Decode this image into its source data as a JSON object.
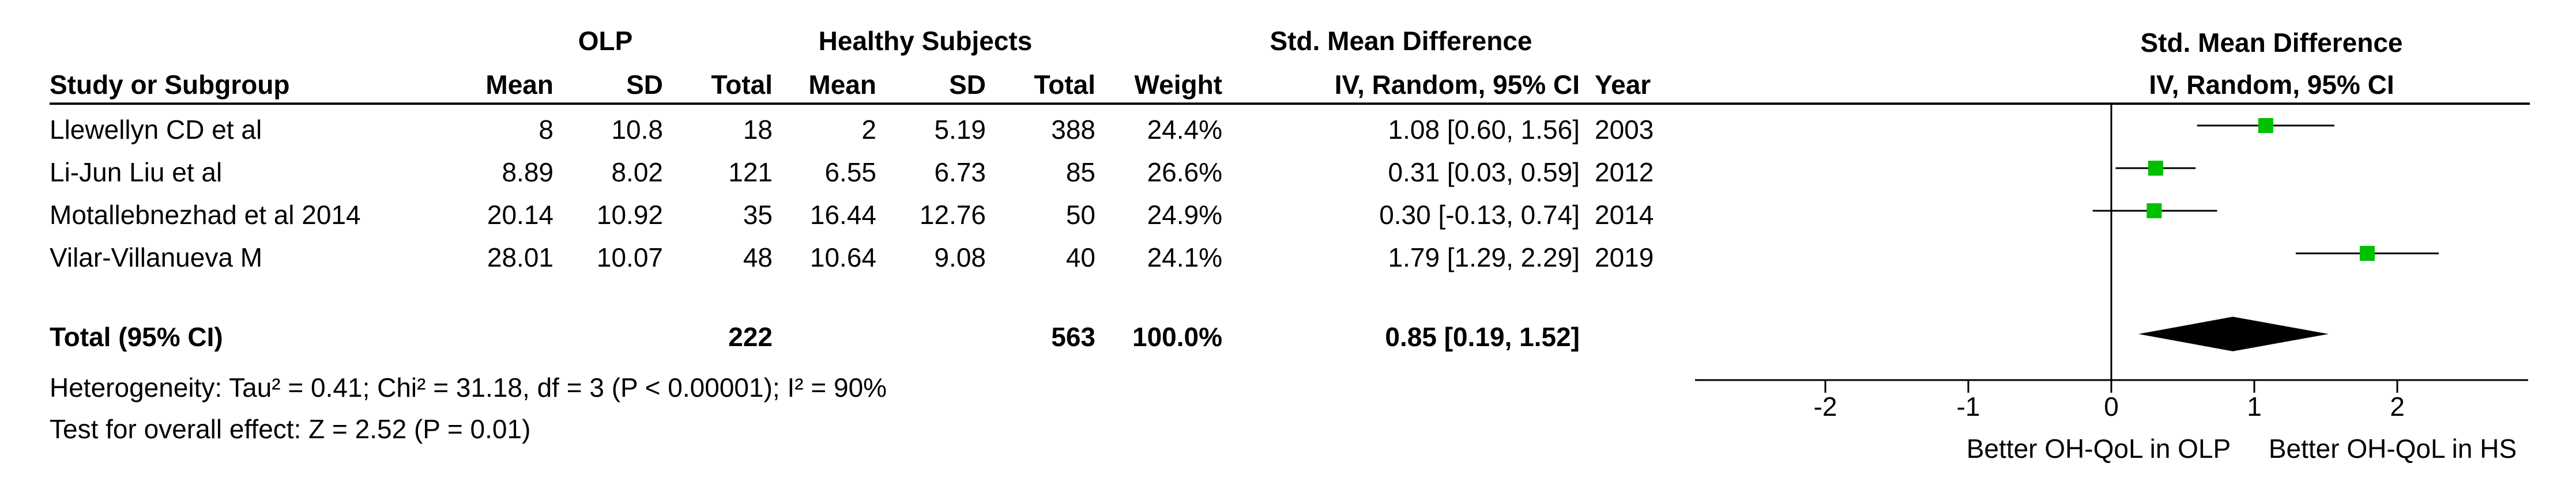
{
  "table": {
    "group_headers": {
      "olp": "OLP",
      "healthy": "Healthy Subjects",
      "smd_title": "Std. Mean Difference"
    },
    "columns": {
      "study": "Study or Subgroup",
      "mean1": "Mean",
      "sd1": "SD",
      "total1": "Total",
      "mean2": "Mean",
      "sd2": "SD",
      "total2": "Total",
      "weight": "Weight",
      "ci": "IV, Random, 95% CI",
      "year": "Year"
    },
    "rows": [
      {
        "study": "Llewellyn CD et al",
        "mean1": "8",
        "sd1": "10.8",
        "total1": "18",
        "mean2": "2",
        "sd2": "5.19",
        "total2": "388",
        "weight": "24.4%",
        "ci": "1.08 [0.60, 1.56]",
        "year": "2003"
      },
      {
        "study": "Li-Jun Liu et al",
        "mean1": "8.89",
        "sd1": "8.02",
        "total1": "121",
        "mean2": "6.55",
        "sd2": "6.73",
        "total2": "85",
        "weight": "26.6%",
        "ci": "0.31 [0.03, 0.59]",
        "year": "2012"
      },
      {
        "study": "Motallebnezhad et al 2014",
        "mean1": "20.14",
        "sd1": "10.92",
        "total1": "35",
        "mean2": "16.44",
        "sd2": "12.76",
        "total2": "50",
        "weight": "24.9%",
        "ci": "0.30 [-0.13, 0.74]",
        "year": "2014"
      },
      {
        "study": "Vilar-Villanueva M",
        "mean1": "28.01",
        "sd1": "10.07",
        "total1": "48",
        "mean2": "10.64",
        "sd2": "9.08",
        "total2": "40",
        "weight": "24.1%",
        "ci": "1.79 [1.29, 2.29]",
        "year": "2019"
      }
    ],
    "total": {
      "label": "Total (95% CI)",
      "total1": "222",
      "total2": "563",
      "weight": "100.0%",
      "ci": "0.85 [0.19, 1.52]"
    },
    "heterogeneity": "Heterogeneity: Tau² = 0.41; Chi² = 31.18, df = 3 (P < 0.00001); I² = 90%",
    "overall_effect": "Test for overall effect: Z = 2.52 (P = 0.01)"
  },
  "chart_data": {
    "type": "forest",
    "title": "Std. Mean Difference",
    "subtitle": "IV, Random, 95% CI",
    "studies": [
      {
        "name": "Llewellyn CD et al",
        "estimate": 1.08,
        "lower": 0.6,
        "upper": 1.56,
        "weight": 24.4
      },
      {
        "name": "Li-Jun Liu et al",
        "estimate": 0.31,
        "lower": 0.03,
        "upper": 0.59,
        "weight": 26.6
      },
      {
        "name": "Motallebnezhad et al 2014",
        "estimate": 0.3,
        "lower": -0.13,
        "upper": 0.74,
        "weight": 24.9
      },
      {
        "name": "Vilar-Villanueva M",
        "estimate": 1.79,
        "lower": 1.29,
        "upper": 2.29,
        "weight": 24.1
      }
    ],
    "pooled": {
      "estimate": 0.85,
      "lower": 0.19,
      "upper": 1.52
    },
    "xlim": [
      -2,
      2
    ],
    "ticks": [
      -2,
      -1,
      0,
      1,
      2
    ],
    "tick_labels": [
      "-2",
      "-1",
      "0",
      "1",
      "2"
    ],
    "xlabel_left": "Better OH-QoL in OLP",
    "xlabel_right": "Better OH-QoL in HS",
    "colors": {
      "marker": "#00c000",
      "diamond": "#000000",
      "line": "#000000"
    }
  }
}
